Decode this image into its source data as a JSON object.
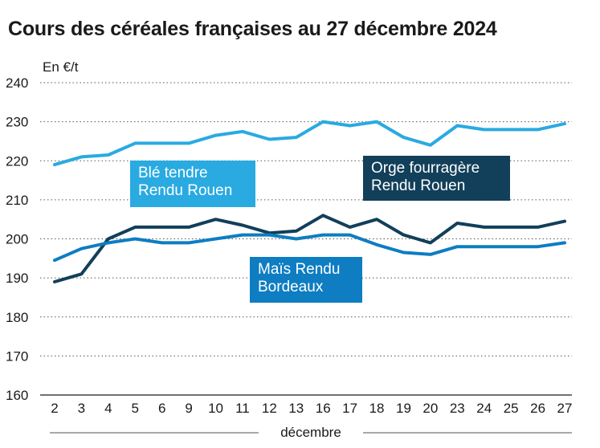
{
  "chart_data": {
    "type": "line",
    "title": "Cours des céréales françaises au 27 décembre 2024",
    "ylabel": "En €/t",
    "xlabel": "décembre",
    "ylim": [
      160,
      240
    ],
    "yticks": [
      160,
      170,
      180,
      190,
      200,
      210,
      220,
      230,
      240
    ],
    "categories": [
      "2",
      "3",
      "4",
      "5",
      "6",
      "9",
      "10",
      "11",
      "12",
      "13",
      "16",
      "17",
      "18",
      "19",
      "20",
      "23",
      "24",
      "25",
      "26",
      "27"
    ],
    "series": [
      {
        "name": "Blé tendre Rendu Rouen",
        "label_lines": [
          "Blé tendre",
          "Rendu Rouen"
        ],
        "color": "#29aae1",
        "values": [
          219,
          221,
          221.5,
          224.5,
          224.5,
          224.5,
          226.5,
          227.5,
          225.5,
          226,
          230,
          229,
          230,
          226,
          224,
          229,
          228,
          228,
          228,
          229.5
        ]
      },
      {
        "name": "Orge fourragère Rendu Rouen",
        "label_lines": [
          "Orge fourragère",
          "Rendu Rouen"
        ],
        "color": "#123f5a",
        "values": [
          189,
          191,
          200,
          203,
          203,
          203,
          205,
          203.5,
          201.5,
          202,
          206,
          203,
          205,
          201,
          199,
          204,
          203,
          203,
          203,
          204.5
        ]
      },
      {
        "name": "Maïs Rendu Bordeaux",
        "label_lines": [
          "Maïs Rendu",
          "Bordeaux"
        ],
        "color": "#0e7dc2",
        "values": [
          194.5,
          197.5,
          199,
          200,
          199,
          199,
          200,
          201,
          201,
          200,
          201,
          201,
          198.5,
          196.5,
          196,
          198,
          198,
          198,
          198,
          199
        ]
      }
    ]
  }
}
